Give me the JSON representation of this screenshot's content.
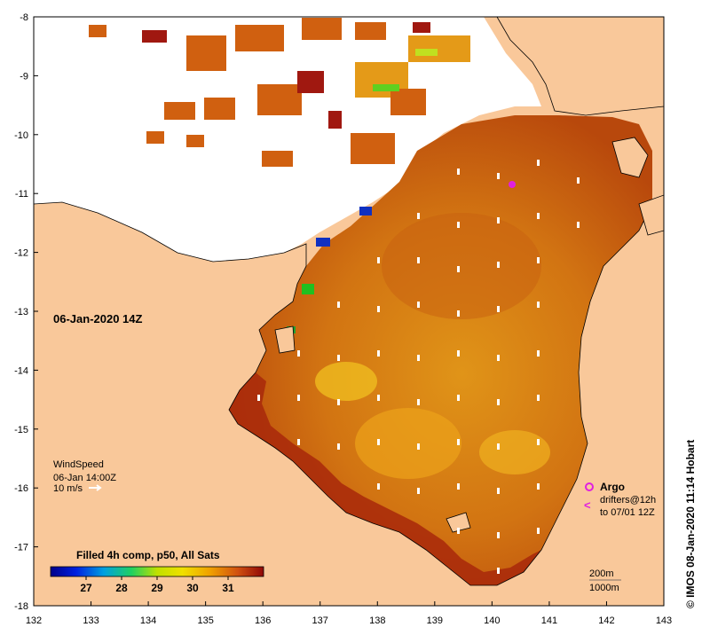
{
  "map": {
    "date_label": "06-Jan-2020 14Z",
    "x_ticks": [
      "132",
      "133",
      "134",
      "135",
      "136",
      "137",
      "138",
      "139",
      "140",
      "141",
      "142",
      "143"
    ],
    "y_ticks": [
      "-8",
      "-9",
      "-10",
      "-11",
      "-12",
      "-13",
      "-14",
      "-15",
      "-16",
      "-17",
      "-18"
    ],
    "lon_range": [
      132,
      143
    ],
    "lat_range": [
      -18,
      -8
    ],
    "colors": {
      "land": "#f9c89a",
      "water_gap": "#ffffff",
      "sst_warm": "#c8500a",
      "sst_hot": "#a0200a",
      "sst_mid": "#e08a14",
      "sst_cool": "#f0b020"
    }
  },
  "wind": {
    "title": "WindSpeed",
    "time": "06-Jan 14:00Z",
    "scale": "10 m/s"
  },
  "legend": {
    "argo_label": "Argo",
    "drifters_label": "drifters@12h",
    "drifters_to": "to 07/01 12Z",
    "argo_color": "#e020e0"
  },
  "contours": {
    "c200": "200m",
    "c1000": "1000m"
  },
  "colorbar": {
    "title": "Filled 4h comp, p50, All Sats",
    "ticks": [
      "27",
      "28",
      "29",
      "30",
      "31"
    ],
    "range": [
      26,
      32
    ],
    "tick_values": [
      27,
      28,
      29,
      30,
      31
    ]
  },
  "credit": "© IMOS 08-Jan-2020 11:14 Hobart"
}
